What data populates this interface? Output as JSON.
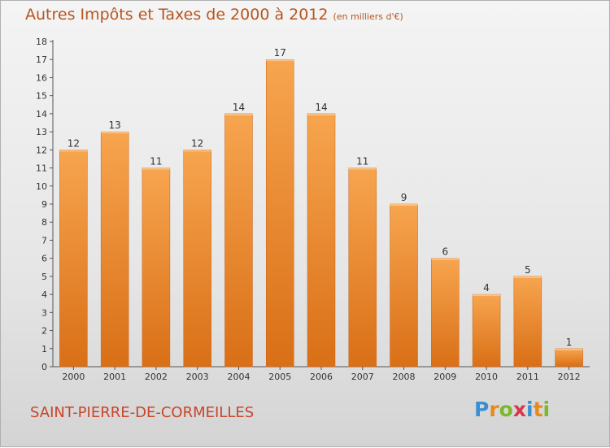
{
  "title": "Autres Impôts et Taxes de 2000 à 2012",
  "subtitle": "(en milliers d'€)",
  "place": "SAINT-PIERRE-DE-CORMEILLES",
  "logo": {
    "text": "Proxiti",
    "letters": [
      "P",
      "r",
      "o",
      "x",
      "i",
      "t",
      "i"
    ],
    "colors": [
      "#3a8fd3",
      "#e68a1e",
      "#7ab928",
      "#d9364e",
      "#3a8fd3",
      "#e68a1e",
      "#7ab928"
    ]
  },
  "colors": {
    "bar_top": "#f7a54f",
    "bar_bottom": "#d96f16",
    "title": "#b8551f",
    "place": "#c8452b",
    "axis": "#555555"
  },
  "chart_data": {
    "type": "bar",
    "categories": [
      "2000",
      "2001",
      "2002",
      "2003",
      "2004",
      "2005",
      "2006",
      "2007",
      "2008",
      "2009",
      "2010",
      "2011",
      "2012"
    ],
    "values": [
      12,
      13,
      11,
      12,
      14,
      17,
      14,
      11,
      9,
      6,
      4,
      5,
      1
    ],
    "ylim": [
      0,
      18
    ],
    "yticks": [
      "0",
      "1",
      "2",
      "3",
      "4",
      "5",
      "6",
      "7",
      "8",
      "9",
      "10",
      "11",
      "12",
      "13",
      "14",
      "15",
      "16",
      "17",
      "18"
    ],
    "grid": false,
    "legend": "none"
  }
}
